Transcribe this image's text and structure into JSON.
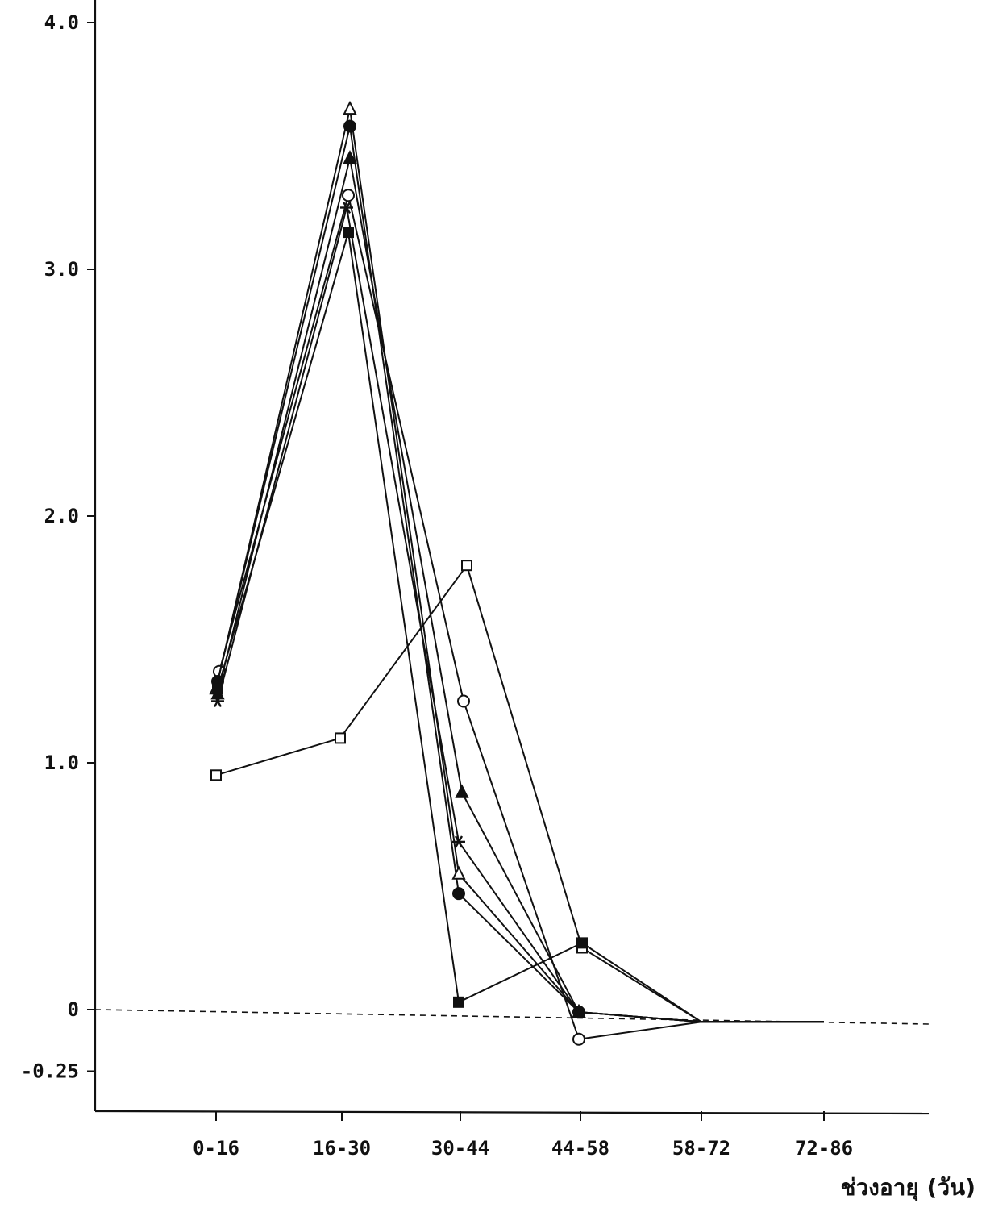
{
  "chart_data": {
    "type": "line",
    "xlabel": "ช่วงอายุ (วัน)",
    "ylabel": "",
    "categories": [
      "0-16",
      "16-30",
      "30-44",
      "44-58",
      "58-72",
      "72-86"
    ],
    "y_tick_labels": [
      "4.0",
      "3.0",
      "2.0",
      "1.0",
      "0",
      "-0.25"
    ],
    "y_ticks": [
      4.0,
      3.0,
      2.0,
      1.0,
      0,
      -0.25
    ],
    "ylim": [
      -0.38,
      4.1
    ],
    "grid": false,
    "reference_line": {
      "y": 0,
      "style": "dashed"
    },
    "series": [
      {
        "marker": "open-square",
        "values": [
          0.95,
          1.1,
          1.8,
          0.25,
          -0.05,
          -0.05
        ]
      },
      {
        "marker": "open-circle",
        "values": [
          1.37,
          3.3,
          1.25,
          -0.12,
          -0.05,
          -0.05
        ]
      },
      {
        "marker": "filled-circle",
        "values": [
          1.33,
          3.58,
          0.47,
          -0.01,
          -0.05,
          -0.05
        ]
      },
      {
        "marker": "open-triangle",
        "values": [
          1.3,
          3.65,
          0.55,
          -0.01,
          -0.05,
          -0.05
        ]
      },
      {
        "marker": "filled-triangle",
        "values": [
          1.28,
          3.45,
          0.88,
          -0.01,
          -0.05,
          -0.05
        ]
      },
      {
        "marker": "asterisk",
        "values": [
          1.25,
          3.25,
          0.68,
          -0.01,
          -0.05,
          -0.05
        ]
      },
      {
        "marker": "filled-square",
        "values": [
          1.3,
          3.15,
          0.03,
          0.27,
          -0.05,
          -0.05
        ]
      }
    ],
    "colors": {
      "line": "#111111",
      "axis": "#111111",
      "background": "#ffffff"
    }
  }
}
